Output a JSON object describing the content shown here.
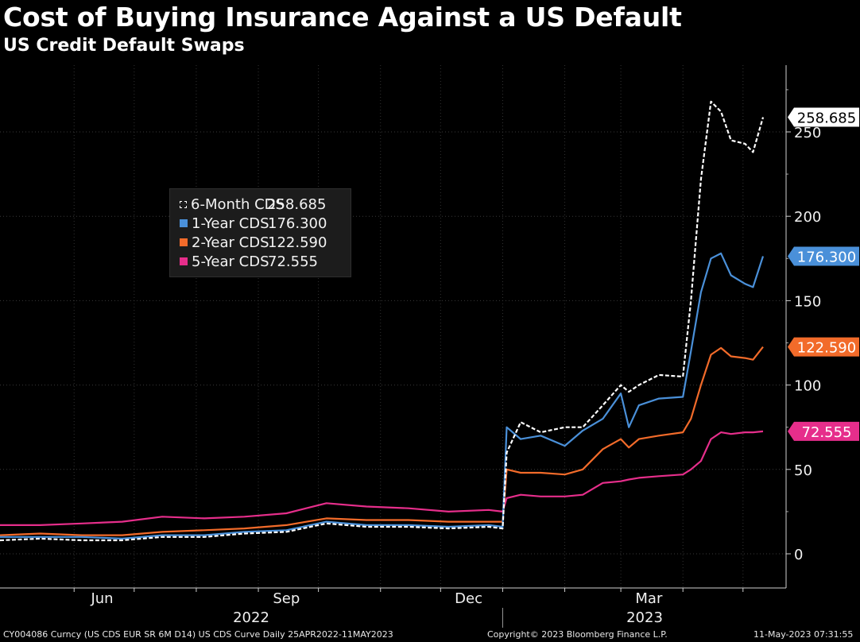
{
  "title": "Cost of Buying Insurance Against a US Default",
  "subtitle": "US Credit Default Swaps",
  "footer": {
    "left": "CY004086 Curncy (US CDS EUR SR 6M D14) US CDS Curve  Daily 25APR2022-11MAY2023",
    "center": "Copyright© 2023 Bloomberg Finance L.P.",
    "right": "11-May-2023 07:31:55"
  },
  "chart_data": {
    "type": "line",
    "title": "Cost of Buying Insurance Against a US Default",
    "subtitle": "US Credit Default Swaps",
    "xlabel": "",
    "ylabel": "",
    "x_range": [
      "2022-04-25",
      "2023-05-11"
    ],
    "ylim": [
      -20,
      290
    ],
    "yticks": [
      0,
      50,
      100,
      150,
      200,
      250
    ],
    "x_tick_labels": [
      "Jun",
      "Sep",
      "Dec",
      "Mar"
    ],
    "year_labels": [
      "2022",
      "2023"
    ],
    "grid": true,
    "legend_position": "upper-left",
    "x": [
      "2022-04-25",
      "2022-05-15",
      "2022-06-05",
      "2022-06-25",
      "2022-07-15",
      "2022-08-05",
      "2022-08-25",
      "2022-09-15",
      "2022-10-05",
      "2022-10-25",
      "2022-11-15",
      "2022-12-05",
      "2022-12-25",
      "2023-01-01",
      "2023-01-03",
      "2023-01-10",
      "2023-01-20",
      "2023-02-01",
      "2023-02-10",
      "2023-02-20",
      "2023-03-01",
      "2023-03-05",
      "2023-03-10",
      "2023-03-20",
      "2023-04-01",
      "2023-04-05",
      "2023-04-10",
      "2023-04-15",
      "2023-04-20",
      "2023-04-25",
      "2023-05-02",
      "2023-05-06",
      "2023-05-11"
    ],
    "series": [
      {
        "name": "6-Month CDS",
        "last": "258.685",
        "color": "#ffffff",
        "style": "dashed",
        "values": [
          8,
          9,
          8,
          8,
          10,
          10,
          12,
          13,
          18,
          16,
          16,
          15,
          16,
          15,
          60,
          78,
          72,
          75,
          75,
          88,
          100,
          96,
          100,
          106,
          105,
          150,
          222,
          268,
          262,
          245,
          243,
          238,
          258.685
        ]
      },
      {
        "name": "1-Year CDS",
        "last": "176.300",
        "color": "#4a90d9",
        "style": "solid",
        "values": [
          10,
          10,
          10,
          9,
          11,
          11,
          13,
          14,
          19,
          17,
          17,
          16,
          17,
          16,
          75,
          68,
          70,
          64,
          73,
          80,
          95,
          75,
          88,
          92,
          93,
          120,
          155,
          175,
          178,
          165,
          160,
          158,
          176.3
        ]
      },
      {
        "name": "2-Year CDS",
        "last": "122.590",
        "color": "#f26b2a",
        "style": "solid",
        "values": [
          11,
          12,
          11,
          11,
          13,
          14,
          15,
          17,
          21,
          20,
          20,
          19,
          19,
          19,
          50,
          48,
          48,
          47,
          50,
          62,
          68,
          63,
          68,
          70,
          72,
          80,
          100,
          118,
          122,
          117,
          116,
          115,
          122.59
        ]
      },
      {
        "name": "5-Year CDS",
        "last": "72.555",
        "color": "#e62e8b",
        "style": "solid",
        "values": [
          17,
          17,
          18,
          19,
          22,
          21,
          22,
          24,
          30,
          28,
          27,
          25,
          26,
          25,
          33,
          35,
          34,
          34,
          35,
          42,
          43,
          44,
          45,
          46,
          47,
          50,
          55,
          68,
          72,
          71,
          72,
          72,
          72.555
        ]
      }
    ],
    "last_value_labels": [
      "258.685",
      "176.300",
      "122.590",
      "72.555"
    ]
  }
}
